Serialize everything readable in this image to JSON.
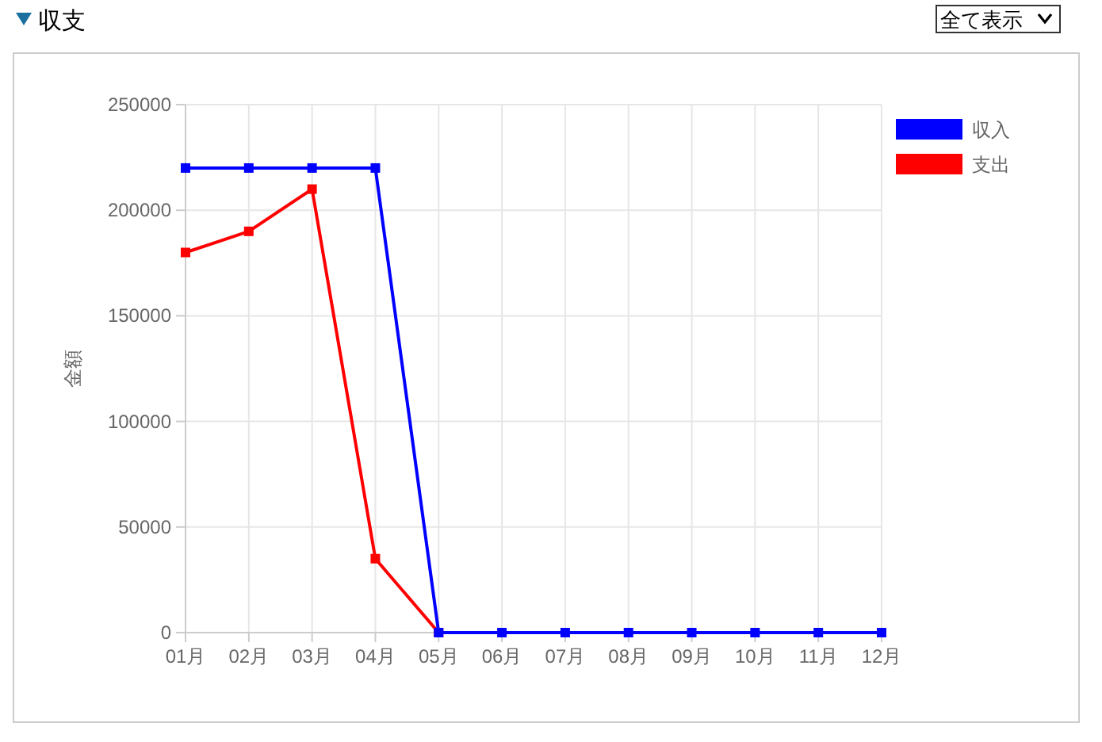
{
  "chart_data": {
    "type": "line",
    "title": "収支",
    "ylabel": "金額",
    "annotations": [
      "全て表示"
    ],
    "categories": [
      "01月",
      "02月",
      "03月",
      "04月",
      "05月",
      "06月",
      "07月",
      "08月",
      "09月",
      "10月",
      "11月",
      "12月"
    ],
    "series": [
      {
        "name": "収入",
        "color": "#0000ff",
        "values": [
          220000,
          220000,
          220000,
          220000,
          0,
          0,
          0,
          0,
          0,
          0,
          0,
          0
        ]
      },
      {
        "name": "支出",
        "color": "#ff0000",
        "values": [
          180000,
          190000,
          210000,
          35000,
          0,
          null,
          null,
          null,
          null,
          null,
          null,
          null
        ]
      }
    ],
    "ylim": [
      0,
      250000
    ],
    "yticks": [
      0,
      50000,
      100000,
      150000,
      200000,
      250000
    ],
    "grid": true,
    "legend": "top right",
    "marker": "square",
    "line_style": "solid"
  }
}
